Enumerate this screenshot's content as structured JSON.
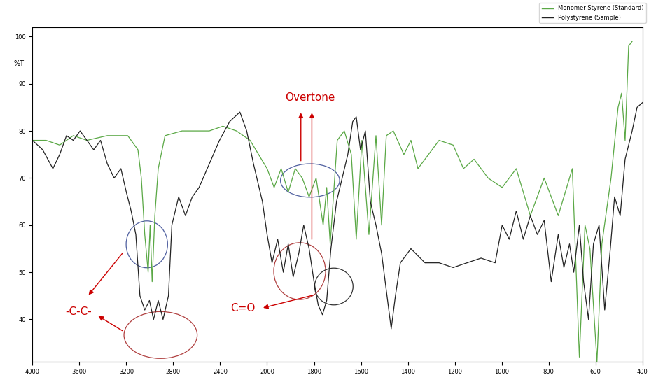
{
  "chart_data": {
    "type": "line",
    "y_label": "%T",
    "annotations": [
      "Overtone",
      "-C-C-",
      "C=O"
    ],
    "xlim": [
      4000,
      400
    ],
    "xticks": [
      4000,
      3600,
      3200,
      2800,
      2400,
      2000,
      1800,
      1600,
      1400,
      1200,
      1000,
      800,
      600,
      400
    ],
    "ylim": [
      31,
      102
    ],
    "yticks": [
      40,
      50,
      60,
      70,
      80,
      90,
      100
    ],
    "grid": false,
    "legend": "upper right",
    "series": [
      {
        "name": "Monomer Styrene (Standard)",
        "color": "#5aa845",
        "x": [
          4000,
          3884,
          3768,
          3652,
          3536,
          3362,
          3188,
          3101,
          3072,
          3043,
          3014,
          2997,
          2980,
          2957,
          2928,
          2870,
          2725,
          2493,
          2377,
          2261,
          2145,
          2000,
          1970,
          1940,
          1910,
          1880,
          1850,
          1821,
          1791,
          1761,
          1746,
          1731,
          1701,
          1671,
          1641,
          1620,
          1596,
          1566,
          1536,
          1512,
          1492,
          1462,
          1417,
          1387,
          1357,
          1312,
          1267,
          1207,
          1163,
          1118,
          1058,
          998,
          938,
          878,
          819,
          759,
          699,
          669,
          645,
          624,
          594,
          573,
          534,
          504,
          489,
          474,
          459,
          444
        ],
        "values": [
          78,
          78,
          77,
          79,
          78,
          79,
          79,
          76,
          70,
          58,
          50,
          60,
          48,
          62,
          72,
          79,
          80,
          80,
          81,
          80,
          78,
          72,
          68,
          72,
          67,
          72,
          70,
          66,
          70,
          60,
          68,
          56,
          78,
          80,
          75,
          57,
          78,
          58,
          79,
          60,
          79,
          80,
          75,
          78,
          72,
          75,
          78,
          77,
          72,
          74,
          70,
          68,
          72,
          62,
          70,
          62,
          72,
          32,
          60,
          55,
          31,
          56,
          70,
          85,
          88,
          78,
          98,
          99
        ]
      },
      {
        "name": "Polystyrene (Sample)",
        "color": "#222222",
        "x": [
          4000,
          3913,
          3826,
          3768,
          3710,
          3652,
          3594,
          3536,
          3478,
          3420,
          3362,
          3304,
          3246,
          3200,
          3159,
          3119,
          3084,
          3043,
          3003,
          2968,
          2928,
          2887,
          2841,
          2812,
          2754,
          2696,
          2638,
          2580,
          2493,
          2406,
          2319,
          2232,
          2174,
          2116,
          2040,
          2000,
          1979,
          1955,
          1931,
          1910,
          1889,
          1865,
          1844,
          1821,
          1800,
          1782,
          1764,
          1746,
          1728,
          1704,
          1680,
          1656,
          1635,
          1620,
          1602,
          1581,
          1560,
          1536,
          1512,
          1489,
          1471,
          1453,
          1432,
          1387,
          1327,
          1267,
          1207,
          1148,
          1088,
          1028,
          998,
          968,
          938,
          908,
          878,
          848,
          819,
          789,
          759,
          735,
          711,
          693,
          669,
          651,
          630,
          609,
          585,
          561,
          537,
          519,
          495,
          474,
          444,
          423,
          400
        ],
        "values": [
          78,
          76,
          72,
          75,
          79,
          78,
          80,
          78,
          76,
          78,
          73,
          70,
          72,
          67,
          63,
          58,
          45,
          42,
          44,
          40,
          44,
          40,
          45,
          60,
          66,
          62,
          66,
          68,
          73,
          78,
          82,
          84,
          80,
          73,
          65,
          58,
          52,
          57,
          50,
          56,
          49,
          54,
          60,
          55,
          48,
          43,
          41,
          44,
          55,
          65,
          70,
          75,
          82,
          83,
          76,
          80,
          65,
          60,
          54,
          45,
          38,
          45,
          52,
          55,
          52,
          52,
          51,
          52,
          53,
          52,
          60,
          57,
          63,
          57,
          62,
          58,
          61,
          48,
          58,
          51,
          56,
          50,
          60,
          48,
          40,
          56,
          60,
          42,
          55,
          66,
          62,
          74,
          80,
          85,
          86
        ]
      }
    ]
  }
}
